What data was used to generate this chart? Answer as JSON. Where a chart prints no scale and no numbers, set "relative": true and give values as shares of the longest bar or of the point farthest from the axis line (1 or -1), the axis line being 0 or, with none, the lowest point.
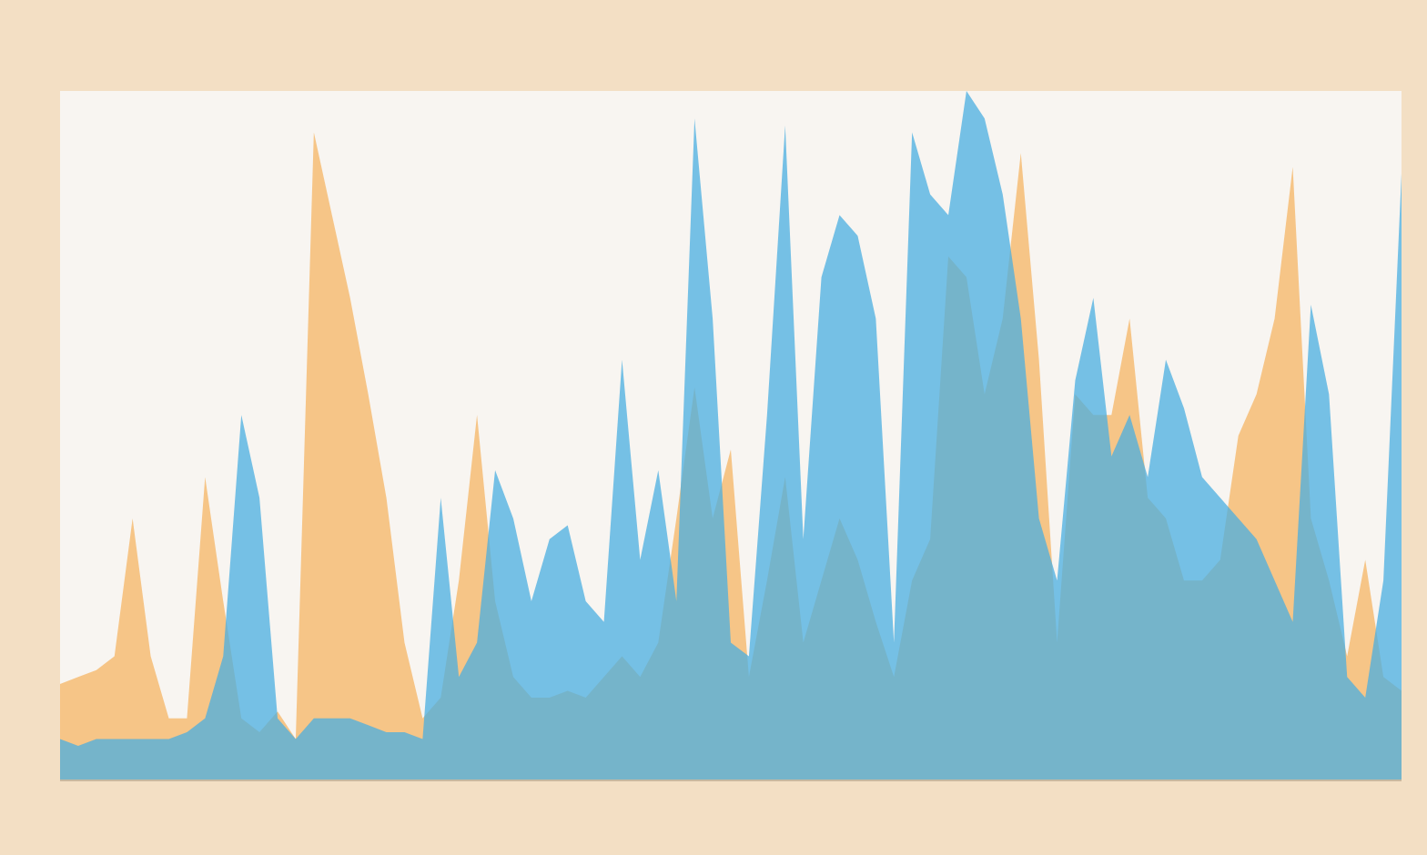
{
  "chart_data": {
    "type": "area",
    "relative": true,
    "categories": [
      null,
      null,
      null,
      null,
      null,
      null,
      null,
      null,
      null,
      null,
      null,
      null,
      null,
      null,
      null,
      null,
      null,
      null,
      null,
      null,
      null,
      null,
      null,
      null,
      null,
      null,
      null,
      null,
      null,
      null,
      null,
      null,
      null,
      null,
      null,
      null,
      null,
      null,
      null,
      null,
      null,
      null,
      null,
      null,
      null,
      null,
      null,
      null,
      null,
      null,
      null,
      null,
      null,
      null,
      null,
      null,
      null,
      null,
      null,
      null,
      null,
      null,
      null,
      null,
      null,
      null,
      null,
      null,
      null,
      null,
      null,
      null,
      null,
      null,
      null
    ],
    "series": [
      {
        "color": "#f5b463",
        "values": [
          0.14,
          0.15,
          0.16,
          0.18,
          0.38,
          0.18,
          0.09,
          0.09,
          0.44,
          0.26,
          0.09,
          0.07,
          0.1,
          0.06,
          0.94,
          0.82,
          0.7,
          0.56,
          0.41,
          0.2,
          0.09,
          0.12,
          0.29,
          0.53,
          0.26,
          0.15,
          0.12,
          0.12,
          0.13,
          0.12,
          0.15,
          0.18,
          0.15,
          0.2,
          0.38,
          0.57,
          0.38,
          0.48,
          0.15,
          0.29,
          0.44,
          0.2,
          0.29,
          0.38,
          0.32,
          0.23,
          0.15,
          0.29,
          0.35,
          0.76,
          0.73,
          0.56,
          0.67,
          0.91,
          0.61,
          0.2,
          0.56,
          0.53,
          0.53,
          0.67,
          0.41,
          0.38,
          0.29,
          0.29,
          0.32,
          0.5,
          0.56,
          0.67,
          0.89,
          0.38,
          0.29,
          0.18,
          0.32,
          0.15,
          0.13
        ]
      },
      {
        "color": "#4aaee0",
        "values": [
          0.06,
          0.05,
          0.06,
          0.06,
          0.06,
          0.06,
          0.06,
          0.07,
          0.09,
          0.18,
          0.53,
          0.41,
          0.09,
          0.06,
          0.09,
          0.09,
          0.09,
          0.08,
          0.07,
          0.07,
          0.06,
          0.41,
          0.15,
          0.2,
          0.45,
          0.38,
          0.26,
          0.35,
          0.37,
          0.26,
          0.23,
          0.61,
          0.32,
          0.45,
          0.26,
          0.96,
          0.67,
          0.2,
          0.18,
          0.53,
          0.95,
          0.35,
          0.73,
          0.82,
          0.79,
          0.67,
          0.2,
          0.94,
          0.85,
          0.82,
          1,
          0.96,
          0.85,
          0.67,
          0.38,
          0.29,
          0.58,
          0.7,
          0.47,
          0.53,
          0.44,
          0.61,
          0.54,
          0.44,
          0.41,
          0.38,
          0.35,
          0.29,
          0.23,
          0.69,
          0.56,
          0.15,
          0.12,
          0.29,
          0.88
        ]
      }
    ]
  }
}
